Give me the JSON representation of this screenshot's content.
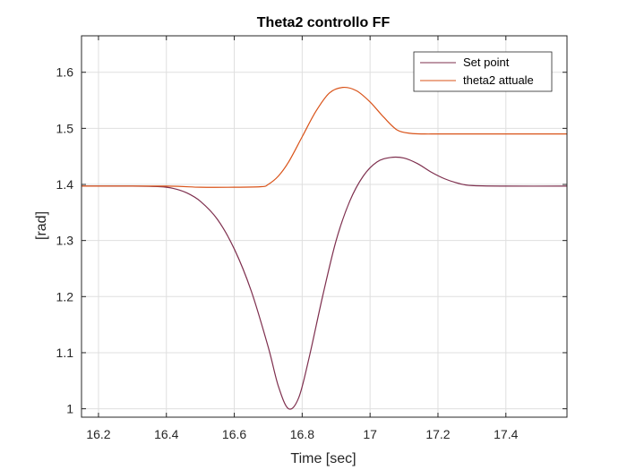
{
  "chart_data": {
    "type": "line",
    "title": "Theta2 controllo FF",
    "xlabel": "Time [sec]",
    "ylabel": "[rad]",
    "xlim": [
      16.15,
      17.58
    ],
    "ylim": [
      0.985,
      1.665
    ],
    "xticks": [
      16.2,
      16.4,
      16.6,
      16.8,
      17,
      17.2,
      17.4
    ],
    "xtick_labels": [
      "16.2",
      "16.4",
      "16.6",
      "16.8",
      "17",
      "17.2",
      "17.4"
    ],
    "yticks": [
      1,
      1.1,
      1.2,
      1.3,
      1.4,
      1.5,
      1.6
    ],
    "ytick_labels": [
      "1",
      "1.1",
      "1.2",
      "1.3",
      "1.4",
      "1.5",
      "1.6"
    ],
    "grid": true,
    "legend_position": "top-right",
    "series": [
      {
        "name": "Set point",
        "color": "#7e2f4e",
        "x": [
          16.15,
          16.3,
          16.38,
          16.42,
          16.46,
          16.5,
          16.55,
          16.6,
          16.65,
          16.7,
          16.73,
          16.76,
          16.79,
          16.82,
          16.86,
          16.9,
          16.94,
          16.98,
          17.02,
          17.06,
          17.1,
          17.14,
          17.18,
          17.22,
          17.26,
          17.3,
          17.4,
          17.58
        ],
        "y": [
          1.397,
          1.397,
          1.396,
          1.393,
          1.385,
          1.37,
          1.338,
          1.285,
          1.21,
          1.11,
          1.04,
          1.0,
          1.02,
          1.09,
          1.2,
          1.3,
          1.37,
          1.415,
          1.44,
          1.448,
          1.447,
          1.437,
          1.422,
          1.41,
          1.402,
          1.398,
          1.397,
          1.397
        ]
      },
      {
        "name": "theta2 attuale",
        "color": "#d95319",
        "x": [
          16.15,
          16.4,
          16.5,
          16.6,
          16.68,
          16.7,
          16.73,
          16.76,
          16.8,
          16.84,
          16.88,
          16.92,
          16.96,
          17.0,
          17.04,
          17.08,
          17.12,
          17.16,
          17.2,
          17.3,
          17.58
        ],
        "y": [
          1.397,
          1.397,
          1.395,
          1.395,
          1.396,
          1.4,
          1.415,
          1.44,
          1.485,
          1.53,
          1.563,
          1.573,
          1.567,
          1.547,
          1.52,
          1.497,
          1.491,
          1.49,
          1.49,
          1.49,
          1.49
        ]
      }
    ]
  }
}
